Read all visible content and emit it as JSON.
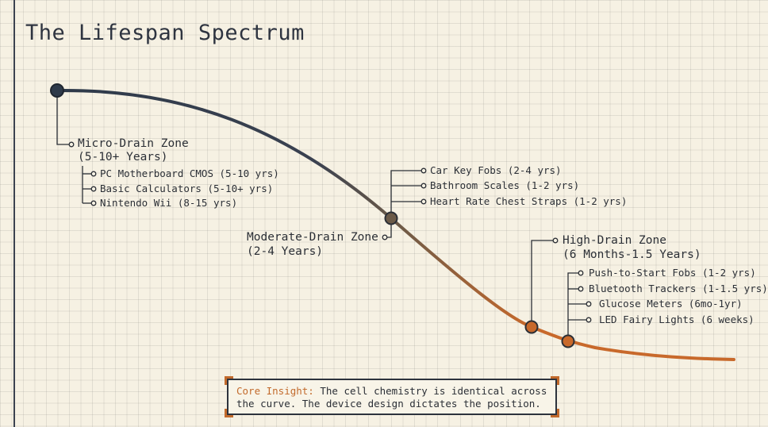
{
  "title": "The Lifespan Spectrum",
  "colors": {
    "dark": "#2e3a4a",
    "mid": "#6b5a48",
    "orange": "#c8692b",
    "grid_bg": "#f6f1e3"
  },
  "zones": {
    "micro": {
      "title": "Micro-Drain Zone",
      "range": "(5-10+ Years)",
      "items": [
        "PC Motherboard CMOS (5-10 yrs)",
        "Basic Calculators (5-10+ yrs)",
        "Nintendo Wii (8-15 yrs)"
      ]
    },
    "moderate": {
      "title": "Moderate-Drain Zone",
      "range": "(2-4 Years)",
      "items": [
        "Car Key Fobs (2-4 yrs)",
        "Bathroom Scales (1-2 yrs)",
        "Heart Rate Chest Straps (1-2 yrs)"
      ]
    },
    "high": {
      "title": "High-Drain Zone",
      "range": "(6 Months-1.5 Years)",
      "items": [
        "Push-to-Start Fobs (1-2 yrs)",
        "Bluetooth Trackers (1-1.5 yrs)",
        "Glucose Meters (6mo-1yr)",
        "LED Fairy Lights (6 weeks)"
      ]
    }
  },
  "insight": {
    "label": "Core Insight:",
    "line1": " The cell chemistry is identical across",
    "line2": "the curve. The device design dictates the position."
  }
}
